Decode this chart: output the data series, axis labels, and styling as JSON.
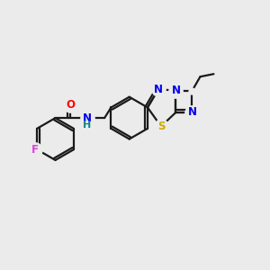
{
  "bg_color": "#ebebeb",
  "line_color": "#1a1a1a",
  "bond_width": 1.6,
  "font_size": 8.5,
  "colors": {
    "F": "#e040e0",
    "O": "#ff0000",
    "N": "#0000ee",
    "S": "#ccaa00",
    "H": "#008888",
    "C": "#1a1a1a"
  },
  "figsize": [
    3.0,
    3.0
  ],
  "dpi": 100
}
